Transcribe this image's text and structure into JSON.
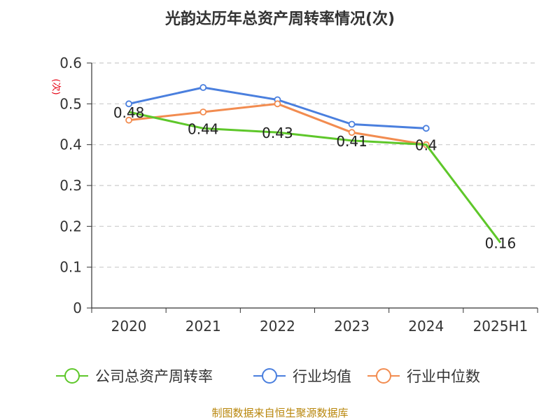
{
  "chart_data": {
    "type": "line",
    "title": "光韵达历年总资产周转率情况(次)",
    "ylabel": "(次)",
    "xlabel": "",
    "categories": [
      "2020",
      "2021",
      "2022",
      "2023",
      "2024",
      "2025H1"
    ],
    "ylim": [
      0,
      0.6
    ],
    "yticks": [
      "0",
      "0.1",
      "0.2",
      "0.3",
      "0.4",
      "0.5",
      "0.6"
    ],
    "grid": true,
    "legend_position": "bottom",
    "series": [
      {
        "name": "公司总资产周转率",
        "color": "#5ec72a",
        "values": [
          0.48,
          0.44,
          0.43,
          0.41,
          0.4,
          0.16
        ],
        "labels": [
          "0.48",
          "0.44",
          "0.43",
          "0.41",
          "0.4",
          "0.16"
        ]
      },
      {
        "name": "行业均值",
        "color": "#4a7fde",
        "values": [
          0.5,
          0.54,
          0.51,
          0.45,
          0.44,
          null
        ]
      },
      {
        "name": "行业中位数",
        "color": "#f28c50",
        "values": [
          0.46,
          0.48,
          0.5,
          0.43,
          0.4,
          null
        ]
      }
    ]
  },
  "source": "制图数据来自恒生聚源数据库"
}
